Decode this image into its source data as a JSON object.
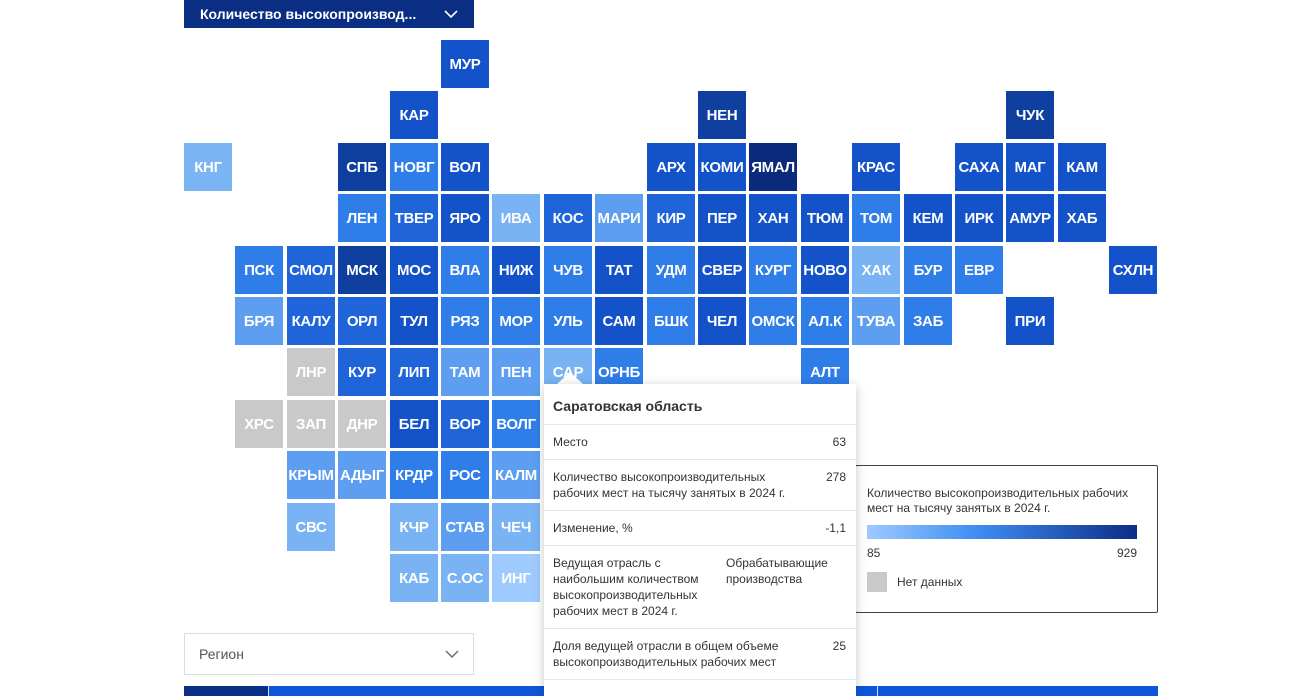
{
  "indicator_select": {
    "label": "Количество высокопроизвод..."
  },
  "region_select": {
    "label": "Регион"
  },
  "colors": {
    "no_data": "#c9c9c9",
    "scale_low": "#9ecaff",
    "scale_high": "#0d2d86"
  },
  "regions": [
    {
      "label": "МУР",
      "col": 5,
      "row": 0,
      "color": "#1452c9"
    },
    {
      "label": "КАР",
      "col": 4,
      "row": 1,
      "color": "#1452c9"
    },
    {
      "label": "НЕН",
      "col": 10,
      "row": 1,
      "color": "#0f3f9f"
    },
    {
      "label": "ЧУК",
      "col": 16,
      "row": 1,
      "color": "#0f3f9f"
    },
    {
      "label": "КНГ",
      "col": 0,
      "row": 2,
      "color": "#7ab4f3"
    },
    {
      "label": "СПБ",
      "col": 3,
      "row": 2,
      "color": "#0e3e9e"
    },
    {
      "label": "НОВГ",
      "col": 4,
      "row": 2,
      "color": "#2f7de8"
    },
    {
      "label": "ВОЛ",
      "col": 5,
      "row": 2,
      "color": "#1452c9"
    },
    {
      "label": "АРХ",
      "col": 9,
      "row": 2,
      "color": "#1452c9"
    },
    {
      "label": "КОМИ",
      "col": 10,
      "row": 2,
      "color": "#1452c9"
    },
    {
      "label": "ЯМАЛ",
      "col": 11,
      "row": 2,
      "color": "#0b2a7c"
    },
    {
      "label": "КРАС",
      "col": 13,
      "row": 2,
      "color": "#1452c9"
    },
    {
      "label": "САХА",
      "col": 15,
      "row": 2,
      "color": "#1452c9"
    },
    {
      "label": "МАГ",
      "col": 16,
      "row": 2,
      "color": "#1452c9"
    },
    {
      "label": "КАМ",
      "col": 17,
      "row": 2,
      "color": "#1452c9"
    },
    {
      "label": "ЛЕН",
      "col": 3,
      "row": 3,
      "color": "#2f7de8"
    },
    {
      "label": "ТВЕР",
      "col": 4,
      "row": 3,
      "color": "#1f64d8"
    },
    {
      "label": "ЯРО",
      "col": 5,
      "row": 3,
      "color": "#1452c9"
    },
    {
      "label": "ИВА",
      "col": 6,
      "row": 3,
      "color": "#79b3f3"
    },
    {
      "label": "КОС",
      "col": 7,
      "row": 3,
      "color": "#1f64d8"
    },
    {
      "label": "МАРИ",
      "col": 8,
      "row": 3,
      "color": "#5d9ef0"
    },
    {
      "label": "КИР",
      "col": 9,
      "row": 3,
      "color": "#1f64d8"
    },
    {
      "label": "ПЕР",
      "col": 10,
      "row": 3,
      "color": "#1452c9"
    },
    {
      "label": "ХАН",
      "col": 11,
      "row": 3,
      "color": "#1452c9"
    },
    {
      "label": "ТЮМ",
      "col": 12,
      "row": 3,
      "color": "#1452c9"
    },
    {
      "label": "ТОМ",
      "col": 13,
      "row": 3,
      "color": "#2f7de8"
    },
    {
      "label": "КЕМ",
      "col": 14,
      "row": 3,
      "color": "#1452c9"
    },
    {
      "label": "ИРК",
      "col": 15,
      "row": 3,
      "color": "#1452c9"
    },
    {
      "label": "АМУР",
      "col": 16,
      "row": 3,
      "color": "#1452c9"
    },
    {
      "label": "ХАБ",
      "col": 17,
      "row": 3,
      "color": "#1452c9"
    },
    {
      "label": "ПСК",
      "col": 1,
      "row": 4,
      "color": "#2f7de8"
    },
    {
      "label": "СМОЛ",
      "col": 2,
      "row": 4,
      "color": "#1f64d8"
    },
    {
      "label": "МСК",
      "col": 3,
      "row": 4,
      "color": "#0e3e9e"
    },
    {
      "label": "МОС",
      "col": 4,
      "row": 4,
      "color": "#1452c9"
    },
    {
      "label": "ВЛА",
      "col": 5,
      "row": 4,
      "color": "#2f7de8"
    },
    {
      "label": "НИЖ",
      "col": 6,
      "row": 4,
      "color": "#1452c9"
    },
    {
      "label": "ЧУВ",
      "col": 7,
      "row": 4,
      "color": "#2f7de8"
    },
    {
      "label": "ТАТ",
      "col": 8,
      "row": 4,
      "color": "#1452c9"
    },
    {
      "label": "УДМ",
      "col": 9,
      "row": 4,
      "color": "#2f7de8"
    },
    {
      "label": "СВЕР",
      "col": 10,
      "row": 4,
      "color": "#1452c9"
    },
    {
      "label": "КУРГ",
      "col": 11,
      "row": 4,
      "color": "#2f7de8"
    },
    {
      "label": "НОВО",
      "col": 12,
      "row": 4,
      "color": "#1452c9"
    },
    {
      "label": "ХАК",
      "col": 13,
      "row": 4,
      "color": "#79b3f3"
    },
    {
      "label": "БУР",
      "col": 14,
      "row": 4,
      "color": "#2f7de8"
    },
    {
      "label": "ЕВР",
      "col": 15,
      "row": 4,
      "color": "#2f7de8"
    },
    {
      "label": "СХЛН",
      "col": 18,
      "row": 4,
      "color": "#1452c9"
    },
    {
      "label": "БРЯ",
      "col": 1,
      "row": 5,
      "color": "#5d9ef0"
    },
    {
      "label": "КАЛУ",
      "col": 2,
      "row": 5,
      "color": "#1f64d8"
    },
    {
      "label": "ОРЛ",
      "col": 3,
      "row": 5,
      "color": "#1f64d8"
    },
    {
      "label": "ТУЛ",
      "col": 4,
      "row": 5,
      "color": "#1452c9"
    },
    {
      "label": "РЯЗ",
      "col": 5,
      "row": 5,
      "color": "#2f7de8"
    },
    {
      "label": "МОР",
      "col": 6,
      "row": 5,
      "color": "#2f7de8"
    },
    {
      "label": "УЛЬ",
      "col": 7,
      "row": 5,
      "color": "#2f7de8"
    },
    {
      "label": "САМ",
      "col": 8,
      "row": 5,
      "color": "#1452c9"
    },
    {
      "label": "БШК",
      "col": 9,
      "row": 5,
      "color": "#2f7de8"
    },
    {
      "label": "ЧЕЛ",
      "col": 10,
      "row": 5,
      "color": "#1452c9"
    },
    {
      "label": "ОМСК",
      "col": 11,
      "row": 5,
      "color": "#2f7de8"
    },
    {
      "label": "АЛ.К",
      "col": 12,
      "row": 5,
      "color": "#2f7de8"
    },
    {
      "label": "ТУВА",
      "col": 13,
      "row": 5,
      "color": "#5d9ef0"
    },
    {
      "label": "ЗАБ",
      "col": 14,
      "row": 5,
      "color": "#2f7de8"
    },
    {
      "label": "ПРИ",
      "col": 16,
      "row": 5,
      "color": "#1452c9"
    },
    {
      "label": "ЛНР",
      "col": 2,
      "row": 6,
      "color": "#c9c9c9"
    },
    {
      "label": "КУР",
      "col": 3,
      "row": 6,
      "color": "#1f64d8"
    },
    {
      "label": "ЛИП",
      "col": 4,
      "row": 6,
      "color": "#1f64d8"
    },
    {
      "label": "ТАМ",
      "col": 5,
      "row": 6,
      "color": "#5d9ef0"
    },
    {
      "label": "ПЕН",
      "col": 6,
      "row": 6,
      "color": "#5d9ef0"
    },
    {
      "label": "САР",
      "col": 7,
      "row": 6,
      "color": "#79b3f3"
    },
    {
      "label": "ОРНБ",
      "col": 8,
      "row": 6,
      "color": "#2f7de8"
    },
    {
      "label": "АЛТ",
      "col": 12,
      "row": 6,
      "color": "#2f7de8"
    },
    {
      "label": "ХРС",
      "col": 1,
      "row": 7,
      "color": "#c9c9c9"
    },
    {
      "label": "ЗАП",
      "col": 2,
      "row": 7,
      "color": "#c9c9c9"
    },
    {
      "label": "ДНР",
      "col": 3,
      "row": 7,
      "color": "#c9c9c9"
    },
    {
      "label": "БЕЛ",
      "col": 4,
      "row": 7,
      "color": "#1452c9"
    },
    {
      "label": "ВОР",
      "col": 5,
      "row": 7,
      "color": "#1f64d8"
    },
    {
      "label": "ВОЛГ",
      "col": 6,
      "row": 7,
      "color": "#2f7de8"
    },
    {
      "label": "КРЫМ",
      "col": 2,
      "row": 8,
      "color": "#5d9ef0"
    },
    {
      "label": "АДЫГ",
      "col": 3,
      "row": 8,
      "color": "#5d9ef0"
    },
    {
      "label": "КРДР",
      "col": 4,
      "row": 8,
      "color": "#2f7de8"
    },
    {
      "label": "РОС",
      "col": 5,
      "row": 8,
      "color": "#2f7de8"
    },
    {
      "label": "КАЛМ",
      "col": 6,
      "row": 8,
      "color": "#5d9ef0"
    },
    {
      "label": "СВС",
      "col": 2,
      "row": 9,
      "color": "#79b3f3"
    },
    {
      "label": "КЧР",
      "col": 4,
      "row": 9,
      "color": "#79b3f3"
    },
    {
      "label": "СТАВ",
      "col": 5,
      "row": 9,
      "color": "#5d9ef0"
    },
    {
      "label": "ЧЕЧ",
      "col": 6,
      "row": 9,
      "color": "#79b3f3"
    },
    {
      "label": "КАБ",
      "col": 4,
      "row": 10,
      "color": "#79b3f3"
    },
    {
      "label": "С.ОС",
      "col": 5,
      "row": 10,
      "color": "#79b3f3"
    },
    {
      "label": "ИНГ",
      "col": 6,
      "row": 10,
      "color": "#9ecaff"
    }
  ],
  "legend": {
    "title": "Количество высокопроизводительных рабочих мест на тысячу занятых в 2024 г.",
    "min": "85",
    "max": "929",
    "no_data_label": "Нет данных"
  },
  "tooltip": {
    "title": "Саратовская область",
    "rows": [
      {
        "key": "Место",
        "value": "63"
      },
      {
        "key": "Количество высокопроизводительных рабочих мест на тысячу занятых в 2024 г.",
        "value": "278"
      },
      {
        "key": "Изменение, %",
        "value": "-1,1"
      },
      {
        "key": "Ведущая отрасль с наибольшим количеством высокопроизводительных рабочих мест в 2024 г.",
        "value": "Обрабатывающие производства"
      },
      {
        "key": "Доля ведущей отрасли в общем объеме высокопроизводительных рабочих мест",
        "value": "25"
      }
    ]
  }
}
